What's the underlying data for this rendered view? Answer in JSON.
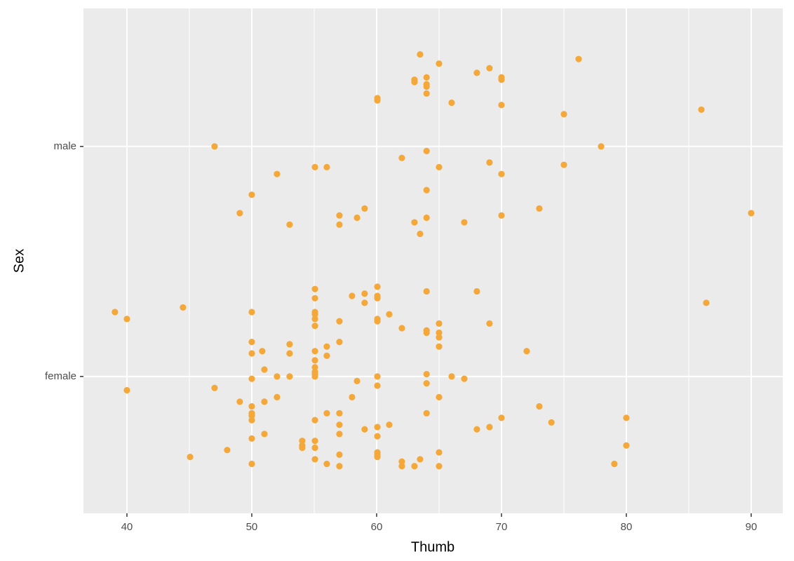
{
  "chart_data": {
    "type": "scatter",
    "x_label": "Thumb",
    "y_label": "Sex",
    "xlim": [
      36.52,
      92.53
    ],
    "ylim": [
      0.405,
      2.6
    ],
    "xticks": [
      40,
      50,
      60,
      70,
      80,
      90
    ],
    "yticks": [
      {
        "value": 1,
        "label": "female"
      },
      {
        "value": 2,
        "label": "male"
      }
    ],
    "grid": true,
    "color": "#f5a83a",
    "x": [
      63.48,
      65,
      76.18,
      68.03,
      69.04,
      64,
      63.03,
      63.03,
      64,
      64,
      70,
      70,
      64,
      60.06,
      60.06,
      66.01,
      70,
      75,
      86.01,
      47.02,
      77.98,
      64,
      62.02,
      69.04,
      65,
      55.06,
      56.01,
      75,
      52.02,
      70,
      64,
      50,
      59.04,
      73.03,
      49.04,
      90,
      57.02,
      58.43,
      64,
      70,
      63.03,
      67.02,
      53.03,
      57.02,
      63.48,
      60.06,
      55.06,
      64,
      68.03,
      59.04,
      58.03,
      60.06,
      60.06,
      55.06,
      59.04,
      86.4,
      44.49,
      39.04,
      50,
      55.06,
      55.06,
      61.01,
      40,
      55.06,
      57.02,
      60.06,
      60.06,
      69.04,
      65,
      55.06,
      62.02,
      64,
      64,
      65,
      65,
      57.02,
      50,
      53.03,
      56.01,
      65,
      50.84,
      55.06,
      72.02,
      50,
      53.03,
      56.01,
      55.06,
      51.01,
      55.06,
      55.06,
      55.06,
      55.06,
      64,
      66.01,
      52.02,
      53.03,
      60.06,
      67.02,
      50,
      58.43,
      64,
      60.06,
      47.02,
      40,
      52.02,
      58.03,
      65,
      49.04,
      51.01,
      73.03,
      50,
      56.01,
      57.02,
      64,
      50,
      50,
      50,
      55.06,
      70,
      80,
      74,
      61.01,
      57.02,
      60.06,
      69.04,
      68.03,
      59.04,
      51.01,
      57.02,
      60.06,
      50,
      54.04,
      55.06,
      54.04,
      55.06,
      54.04,
      80,
      48.03,
      65,
      60.06,
      57.02,
      60.06,
      60.06,
      63.48,
      45.06,
      55.06,
      50,
      79.04,
      62.02,
      56.01,
      57.02,
      62.02,
      63.03,
      65
    ],
    "values": [
      2.4,
      2.36,
      2.38,
      2.32,
      2.34,
      2.3,
      2.29,
      2.28,
      2.27,
      2.26,
      2.3,
      2.29,
      2.23,
      2.21,
      2.2,
      2.19,
      2.18,
      2.14,
      2.16,
      2.0,
      2.0,
      1.98,
      1.95,
      1.93,
      1.91,
      1.91,
      1.91,
      1.92,
      1.88,
      1.88,
      1.81,
      1.79,
      1.73,
      1.73,
      1.71,
      1.71,
      1.7,
      1.69,
      1.69,
      1.7,
      1.67,
      1.67,
      1.66,
      1.66,
      1.62,
      1.39,
      1.38,
      1.37,
      1.37,
      1.36,
      1.35,
      1.35,
      1.34,
      1.34,
      1.32,
      1.32,
      1.3,
      1.28,
      1.28,
      1.28,
      1.27,
      1.27,
      1.25,
      1.25,
      1.24,
      1.25,
      1.24,
      1.23,
      1.23,
      1.22,
      1.21,
      1.2,
      1.19,
      1.19,
      1.17,
      1.15,
      1.15,
      1.14,
      1.13,
      1.13,
      1.11,
      1.11,
      1.11,
      1.1,
      1.1,
      1.09,
      1.07,
      1.03,
      1.04,
      1.02,
      1.01,
      1.0,
      1.01,
      1.0,
      1.0,
      1.0,
      1.0,
      0.99,
      0.99,
      0.98,
      0.97,
      0.96,
      0.95,
      0.94,
      0.91,
      0.91,
      0.91,
      0.89,
      0.89,
      0.87,
      0.87,
      0.84,
      0.84,
      0.84,
      0.84,
      0.83,
      0.81,
      0.81,
      0.82,
      0.82,
      0.8,
      0.79,
      0.79,
      0.78,
      0.78,
      0.77,
      0.77,
      0.75,
      0.75,
      0.74,
      0.73,
      0.72,
      0.72,
      0.7,
      0.69,
      0.69,
      0.7,
      0.68,
      0.67,
      0.67,
      0.66,
      0.66,
      0.65,
      0.64,
      0.65,
      0.64,
      0.62,
      0.62,
      0.63,
      0.62,
      0.61,
      0.61,
      0.61,
      0.61
    ]
  }
}
